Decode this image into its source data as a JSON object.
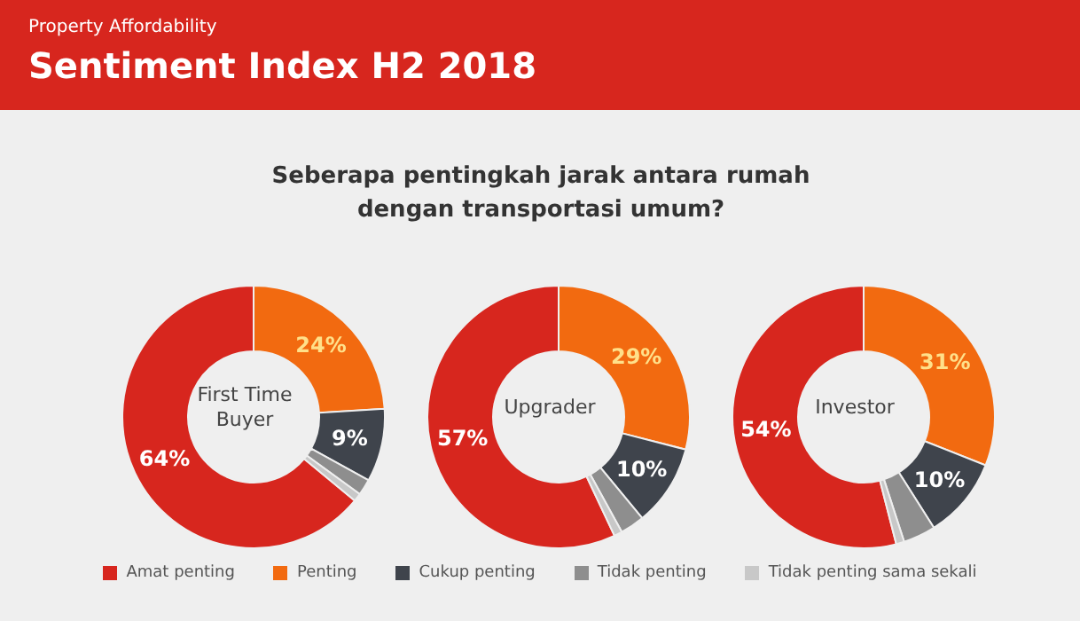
{
  "chart_data": {
    "type": "donut",
    "title": "Sentiment Index H2 2018",
    "subtitle": "Seberapa pentingkah jarak antara rumah dengan transportasi umum?",
    "annotations": [
      "Property Affordability"
    ],
    "categories": [
      "Amat penting",
      "Penting",
      "Cukup penting",
      "Tidak penting",
      "Tidak penting sama sekali"
    ],
    "colors": [
      "#d7261e",
      "#f26a10",
      "#3f444c",
      "#8e8e8e",
      "#c8c8c8"
    ],
    "legend": "bottom",
    "series": [
      {
        "name": "First Time Buyer",
        "values": [
          64,
          24,
          9,
          2,
          1
        ],
        "value_labels": [
          "64%",
          "24%",
          "9%",
          null,
          null
        ]
      },
      {
        "name": "Upgrader",
        "values": [
          57,
          29,
          10,
          3,
          1
        ],
        "value_labels": [
          "57%",
          "29%",
          "10%",
          null,
          null
        ]
      },
      {
        "name": "Investor",
        "values": [
          54,
          31,
          10,
          4,
          1
        ],
        "value_labels": [
          "54%",
          "31%",
          "10%",
          null,
          null
        ]
      }
    ]
  }
}
